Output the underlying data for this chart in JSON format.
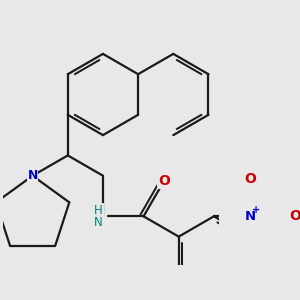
{
  "background_color": "#e8e8e8",
  "bond_color": "#1a1a1a",
  "N_color": "#0000cc",
  "O_color": "#cc0000",
  "NH_color": "#008080",
  "line_width": 1.6,
  "figsize": [
    3.0,
    3.0
  ],
  "dpi": 100,
  "xlim": [
    -2.5,
    5.5
  ],
  "ylim": [
    -4.5,
    4.0
  ]
}
